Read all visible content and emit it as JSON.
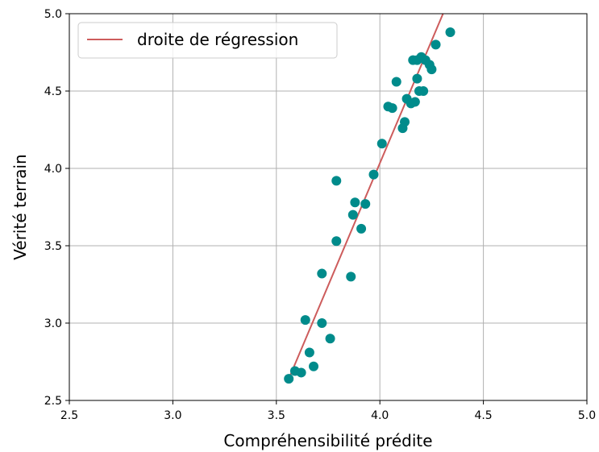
{
  "chart_data": {
    "type": "scatter",
    "xlabel": "Compréhensibilité prédite",
    "ylabel": "Vérité terrain",
    "xlim": [
      2.5,
      5.0
    ],
    "ylim": [
      2.5,
      5.0
    ],
    "xticks": [
      "2.5",
      "3.0",
      "3.5",
      "4.0",
      "4.5",
      "5.0"
    ],
    "yticks": [
      "2.5",
      "3.0",
      "3.5",
      "4.0",
      "4.5",
      "5.0"
    ],
    "grid": true,
    "legend": {
      "position": "top-left",
      "entries": [
        "droite de régression"
      ]
    },
    "colors": {
      "points": "#008b8b",
      "regression": "#cd5c5c",
      "grid": "#b0b0b0"
    },
    "series": [
      {
        "kind": "points",
        "x": [
          3.56,
          3.59,
          3.62,
          3.64,
          3.66,
          3.68,
          3.72,
          3.72,
          3.76,
          3.79,
          3.79,
          3.86,
          3.87,
          3.88,
          3.91,
          3.93,
          3.97,
          4.01,
          4.04,
          4.06,
          4.08,
          4.11,
          4.12,
          4.13,
          4.15,
          4.16,
          4.17,
          4.18,
          4.18,
          4.19,
          4.2,
          4.21,
          4.22,
          4.24,
          4.25,
          4.27,
          4.34
        ],
        "y": [
          2.64,
          2.69,
          2.68,
          3.02,
          2.81,
          2.72,
          3.32,
          3.0,
          2.9,
          3.53,
          3.92,
          3.3,
          3.7,
          3.78,
          3.61,
          3.77,
          3.96,
          4.16,
          4.4,
          4.39,
          4.56,
          4.26,
          4.3,
          4.45,
          4.42,
          4.7,
          4.43,
          4.58,
          4.7,
          4.5,
          4.72,
          4.5,
          4.7,
          4.67,
          4.64,
          4.8,
          4.88
        ]
      },
      {
        "kind": "line",
        "name": "droite de régression",
        "x": [
          3.56,
          4.305
        ],
        "y": [
          2.64,
          5.0
        ]
      }
    ]
  }
}
